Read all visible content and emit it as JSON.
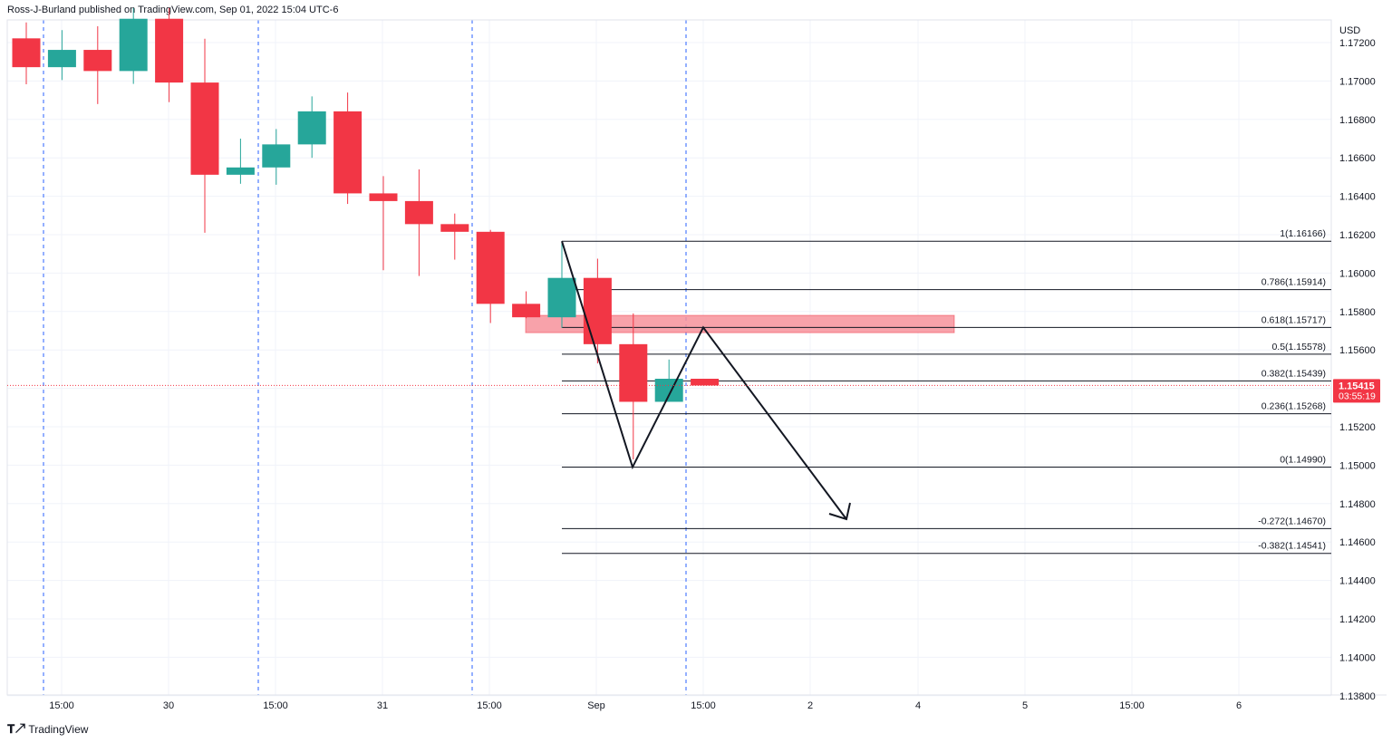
{
  "header": {
    "publisher": "Ross-J-Burland published on TradingView.com, Sep 01, 2022 15:04 UTC-6"
  },
  "footer": {
    "brand": "TradingView"
  },
  "chart_data": {
    "type": "candlestick",
    "currency": "USD",
    "colors": {
      "up": "#26a69a",
      "down": "#f23645",
      "zone": "#f7929b",
      "grid": "#f0f3fa"
    },
    "ylim": [
      1.138,
      1.173
    ],
    "y_ticks": [
      "1.17200",
      "1.17000",
      "1.16800",
      "1.16600",
      "1.16400",
      "1.16200",
      "1.16000",
      "1.15800",
      "1.15600",
      "1.15400",
      "1.15200",
      "1.15000",
      "1.14800",
      "1.14600",
      "1.14400",
      "1.14200",
      "1.14000",
      "1.13800"
    ],
    "x_ticks": [
      "15:00",
      "30",
      "15:00",
      "31",
      "15:00",
      "Sep",
      "15:00",
      "2",
      "4",
      "5",
      "15:00",
      "6"
    ],
    "candles": [
      {
        "o": 1.17222,
        "h": 1.17305,
        "l": 1.16983,
        "c": 1.17072
      },
      {
        "o": 1.17072,
        "h": 1.17265,
        "l": 1.17005,
        "c": 1.17162
      },
      {
        "o": 1.17162,
        "h": 1.17285,
        "l": 1.1688,
        "c": 1.17052
      },
      {
        "o": 1.17052,
        "h": 1.1738,
        "l": 1.16985,
        "c": 1.17324
      },
      {
        "o": 1.17324,
        "h": 1.1738,
        "l": 1.1689,
        "c": 1.16992
      },
      {
        "o": 1.16992,
        "h": 1.1722,
        "l": 1.1621,
        "c": 1.16512
      },
      {
        "o": 1.16512,
        "h": 1.167,
        "l": 1.16465,
        "c": 1.1655
      },
      {
        "o": 1.1655,
        "h": 1.1675,
        "l": 1.1646,
        "c": 1.1667
      },
      {
        "o": 1.1667,
        "h": 1.1692,
        "l": 1.166,
        "c": 1.16842
      },
      {
        "o": 1.16842,
        "h": 1.1694,
        "l": 1.1636,
        "c": 1.16415
      },
      {
        "o": 1.16415,
        "h": 1.16505,
        "l": 1.16015,
        "c": 1.16375
      },
      {
        "o": 1.16375,
        "h": 1.1654,
        "l": 1.15985,
        "c": 1.16255
      },
      {
        "o": 1.16255,
        "h": 1.1631,
        "l": 1.1607,
        "c": 1.16215
      },
      {
        "o": 1.16215,
        "h": 1.16225,
        "l": 1.1574,
        "c": 1.1584
      },
      {
        "o": 1.1584,
        "h": 1.15905,
        "l": 1.15765,
        "c": 1.1577
      },
      {
        "o": 1.1577,
        "h": 1.16165,
        "l": 1.15715,
        "c": 1.15975
      },
      {
        "o": 1.15975,
        "h": 1.16075,
        "l": 1.1553,
        "c": 1.1563
      },
      {
        "o": 1.1563,
        "h": 1.1579,
        "l": 1.1503,
        "c": 1.1533
      },
      {
        "o": 1.1533,
        "h": 1.1555,
        "l": 1.1533,
        "c": 1.1545
      },
      {
        "o": 1.1545,
        "h": 1.1545,
        "l": 1.15415,
        "c": 1.15415
      }
    ],
    "fib_levels": [
      {
        "label": "1(1.16166)",
        "value": 1.16166
      },
      {
        "label": "0.786(1.15914)",
        "value": 1.15914
      },
      {
        "label": "0.618(1.15717)",
        "value": 1.15717
      },
      {
        "label": "0.5(1.15578)",
        "value": 1.15578
      },
      {
        "label": "0.382(1.15439)",
        "value": 1.15439
      },
      {
        "label": "0.236(1.15268)",
        "value": 1.15268
      },
      {
        "label": "0(1.14990)",
        "value": 1.1499
      },
      {
        "label": "-0.272(1.14670)",
        "value": 1.1467
      },
      {
        "label": "-0.382(1.14541)",
        "value": 1.14541
      }
    ],
    "resistance_zone": {
      "from": 1.1569,
      "to": 1.1578
    },
    "last_price": {
      "value": "1.15415",
      "countdown": "03:55:19",
      "price": 1.15415
    }
  }
}
